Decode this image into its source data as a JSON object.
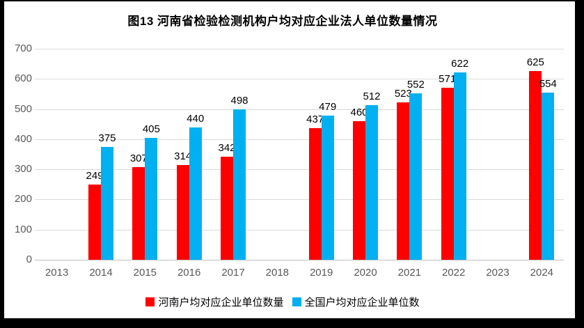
{
  "title": "图13 河南省检验检测机构户均对应企业法人单位数量情况",
  "colors": {
    "background": "#FFFFFF",
    "frame": "#000000",
    "gridline": "#D9D9D9",
    "axis_line": "#BFBFBF",
    "axis_label": "#595959",
    "data_label": "#000000",
    "series_henan": "#FF0000",
    "series_national": "#00B0F0"
  },
  "chart_data": {
    "type": "bar",
    "title": "图13 河南省检验检测机构户均对应企业法人单位数量情况",
    "categories": [
      "2013",
      "2014",
      "2015",
      "2016",
      "2017",
      "2018",
      "2019",
      "2020",
      "2021",
      "2022",
      "2023",
      "2024"
    ],
    "series": [
      {
        "name": "河南户均对应企业单位数量",
        "color": "#FF0000",
        "values": [
          null,
          249,
          307,
          314,
          342,
          null,
          437,
          460,
          523,
          571,
          null,
          625
        ]
      },
      {
        "name": "全国户均对应企业单位数",
        "color": "#00B0F0",
        "values": [
          null,
          375,
          405,
          440,
          498,
          null,
          479,
          512,
          552,
          622,
          null,
          554
        ]
      }
    ],
    "xlabel": "",
    "ylabel": "",
    "ylim": [
      0,
      700
    ],
    "ytick_step": 100,
    "grid": true,
    "legend_position": "bottom",
    "data_labels": "outside-end"
  }
}
